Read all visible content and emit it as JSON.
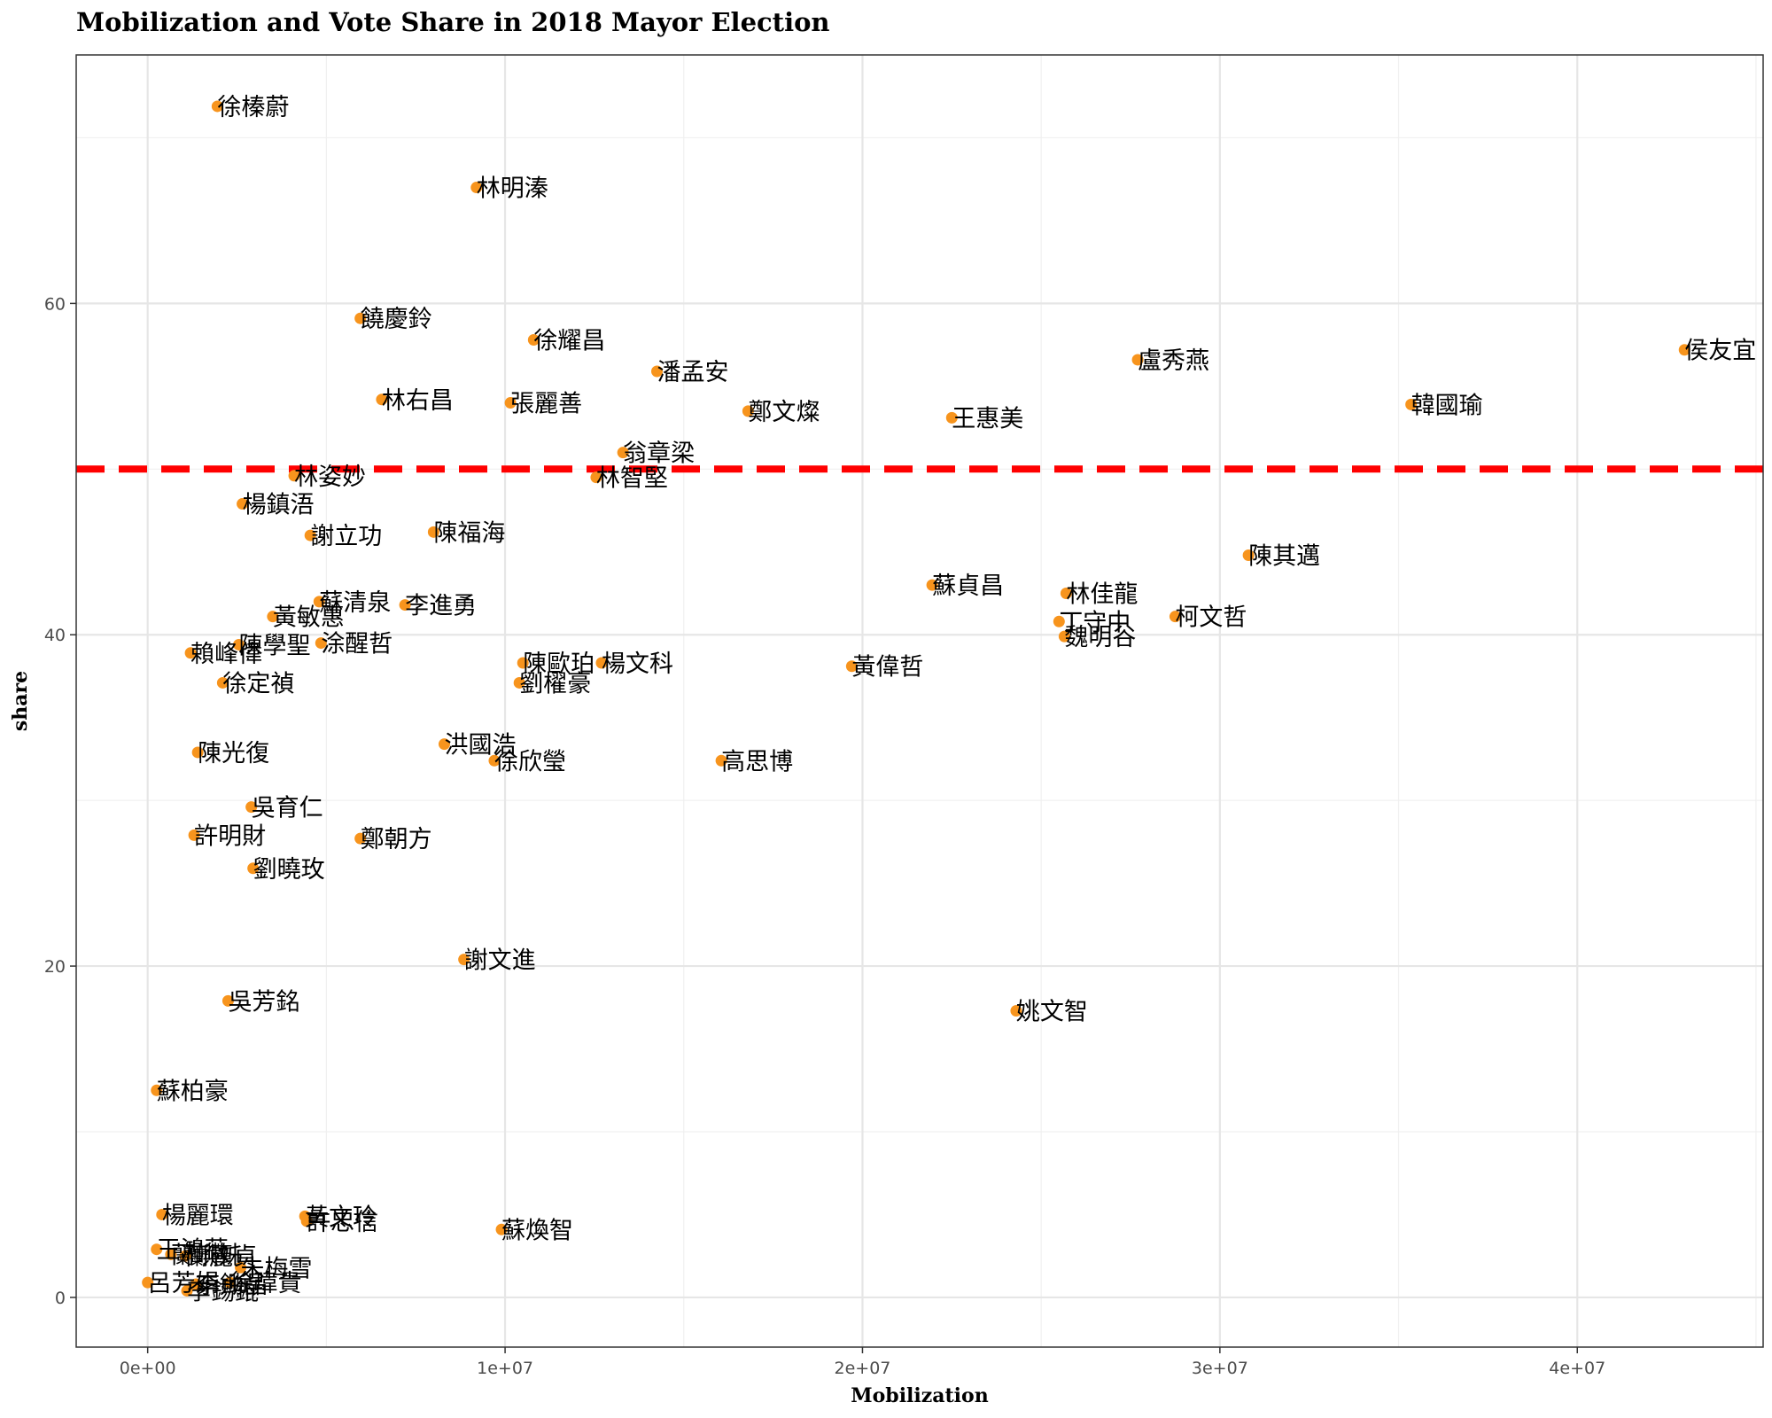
{
  "chart_data": {
    "type": "scatter",
    "title": "Mobilization and Vote Share in 2018 Mayor Election",
    "xlabel": "Mobilization",
    "ylabel": "share",
    "xlim": [
      -2000000,
      45200000
    ],
    "ylim": [
      -3,
      75
    ],
    "x_ticks": [
      0,
      10000000,
      20000000,
      30000000,
      40000000
    ],
    "x_tick_labels": [
      "0e+00",
      "1e+07",
      "2e+07",
      "3e+07",
      "4e+07"
    ],
    "y_ticks": [
      0,
      20,
      40,
      60
    ],
    "y_tick_labels": [
      "0",
      "20",
      "40",
      "60"
    ],
    "grid": true,
    "reference_line": {
      "y": 50,
      "color": "#ff0000",
      "style": "dashed"
    },
    "point_color": "#f7941d",
    "points": [
      {
        "label": "徐榛蔚",
        "x": 1950000,
        "y": 71.9
      },
      {
        "label": "林明溱",
        "x": 9200000,
        "y": 67.0
      },
      {
        "label": "饒慶鈴",
        "x": 5950000,
        "y": 59.1
      },
      {
        "label": "徐耀昌",
        "x": 10800000,
        "y": 57.8
      },
      {
        "label": "潘孟安",
        "x": 14250000,
        "y": 55.9
      },
      {
        "label": "林右昌",
        "x": 6550000,
        "y": 54.2
      },
      {
        "label": "張麗善",
        "x": 10150000,
        "y": 54.0
      },
      {
        "label": "鄭文燦",
        "x": 16800000,
        "y": 53.5
      },
      {
        "label": "翁章梁",
        "x": 13300000,
        "y": 51.0
      },
      {
        "label": "林姿妙",
        "x": 4100000,
        "y": 49.6
      },
      {
        "label": "林智堅",
        "x": 12550000,
        "y": 49.5
      },
      {
        "label": "楊鎮浯",
        "x": 2650000,
        "y": 47.9
      },
      {
        "label": "陳福海",
        "x": 8000000,
        "y": 46.2
      },
      {
        "label": "謝立功",
        "x": 4550000,
        "y": 46.0
      },
      {
        "label": "蘇清泉",
        "x": 4800000,
        "y": 42.0
      },
      {
        "label": "李進勇",
        "x": 7200000,
        "y": 41.8
      },
      {
        "label": "黃敏惠",
        "x": 3500000,
        "y": 41.1
      },
      {
        "label": "陳學聖",
        "x": 2550000,
        "y": 39.4
      },
      {
        "label": "涂醒哲",
        "x": 4850000,
        "y": 39.5
      },
      {
        "label": "賴峰偉",
        "x": 1200000,
        "y": 38.9
      },
      {
        "label": "徐定禎",
        "x": 2100000,
        "y": 37.1
      },
      {
        "label": "陳歐珀",
        "x": 10500000,
        "y": 38.3
      },
      {
        "label": "楊文科",
        "x": 12700000,
        "y": 38.3
      },
      {
        "label": "劉櫂豪",
        "x": 10400000,
        "y": 37.1
      },
      {
        "label": "陳光復",
        "x": 1400000,
        "y": 32.9
      },
      {
        "label": "洪國浩",
        "x": 8300000,
        "y": 33.4
      },
      {
        "label": "徐欣瑩",
        "x": 9700000,
        "y": 32.4
      },
      {
        "label": "吳育仁",
        "x": 2900000,
        "y": 29.6
      },
      {
        "label": "許明財",
        "x": 1300000,
        "y": 27.9
      },
      {
        "label": "鄭朝方",
        "x": 5950000,
        "y": 27.7
      },
      {
        "label": "劉曉玫",
        "x": 2950000,
        "y": 25.9
      },
      {
        "label": "謝文進",
        "x": 8850000,
        "y": 20.4
      },
      {
        "label": "吳芳銘",
        "x": 2250000,
        "y": 17.9
      },
      {
        "label": "蘇柏豪",
        "x": 250000,
        "y": 12.5
      },
      {
        "label": "楊麗環",
        "x": 400000,
        "y": 5.0
      },
      {
        "label": "黃文玲",
        "x": 4400000,
        "y": 4.9
      },
      {
        "label": "許忠信",
        "x": 4450000,
        "y": 4.6
      },
      {
        "label": "蘇煥智",
        "x": 9900000,
        "y": 4.1
      },
      {
        "label": "王鴻薇",
        "x": 250000,
        "y": 2.9
      },
      {
        "label": "蘭嶼姊",
        "x": 650000,
        "y": 2.6
      },
      {
        "label": "蘭麗貞",
        "x": 1050000,
        "y": 2.5
      },
      {
        "label": "朱梅雪",
        "x": 2600000,
        "y": 1.8
      },
      {
        "label": "呂芳娟",
        "x": 0,
        "y": 0.9
      },
      {
        "label": "李鋤晶",
        "x": 1350000,
        "y": 0.8
      },
      {
        "label": "李錫錕",
        "x": 1100000,
        "y": 0.4
      },
      {
        "label": "徐瑋貴",
        "x": 2300000,
        "y": 0.9
      },
      {
        "label": "蘇貞昌",
        "x": 21950000,
        "y": 43.0
      },
      {
        "label": "黃偉哲",
        "x": 19700000,
        "y": 38.1
      },
      {
        "label": "高思博",
        "x": 16050000,
        "y": 32.4
      },
      {
        "label": "王惠美",
        "x": 22500000,
        "y": 53.1
      },
      {
        "label": "林佳龍",
        "x": 25700000,
        "y": 42.5
      },
      {
        "label": "丁守中",
        "x": 25500000,
        "y": 40.8
      },
      {
        "label": "魏明谷",
        "x": 25650000,
        "y": 39.9
      },
      {
        "label": "姚文智",
        "x": 24300000,
        "y": 17.3
      },
      {
        "label": "盧秀燕",
        "x": 27700000,
        "y": 56.6
      },
      {
        "label": "柯文哲",
        "x": 28750000,
        "y": 41.1
      },
      {
        "label": "陳其邁",
        "x": 30800000,
        "y": 44.8
      },
      {
        "label": "韓國瑜",
        "x": 35350000,
        "y": 53.9
      },
      {
        "label": "侯友宜",
        "x": 43000000,
        "y": 57.2
      }
    ]
  }
}
